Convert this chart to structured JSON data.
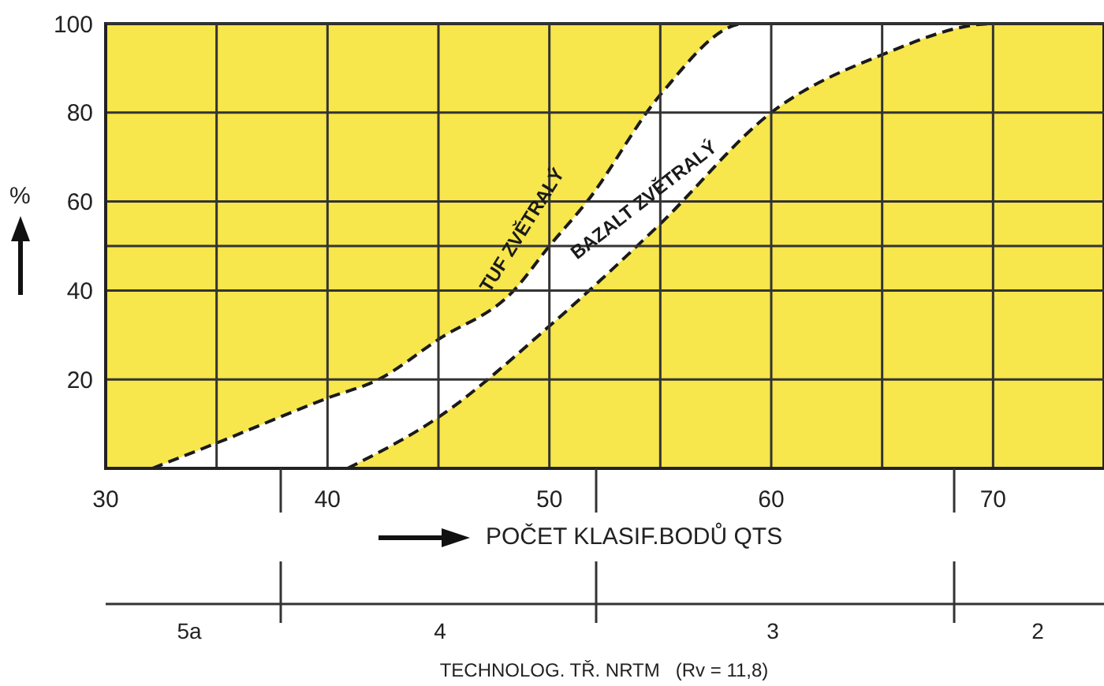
{
  "chart_data": {
    "type": "area",
    "xlabel": "POČET KLASIF.BODŮ QTS",
    "ylabel": "%",
    "annotations": [
      "5a",
      "4",
      "3",
      "2",
      "TECHNOLOG. TŘ. NRTM   (Rv = 11,8)"
    ],
    "xlim": [
      30,
      75
    ],
    "ylim": [
      0,
      100
    ],
    "xticks": [
      30,
      {
        "value": 35,
        "label": null
      },
      40,
      {
        "value": 45,
        "label": null
      },
      50,
      {
        "value": 55,
        "label": null
      },
      60,
      {
        "value": 65,
        "label": null
      },
      70
    ],
    "yticks": [
      20,
      40,
      {
        "value": 50,
        "label": null
      },
      60,
      80,
      100
    ],
    "grid": true,
    "legend": false,
    "line_style": "dashed",
    "marker": "none",
    "series": [
      {
        "name": "TUF ZVĚTRALÝ",
        "color": "#1a1a1a",
        "x": [
          32.1,
          35,
          40,
          42.3,
          45,
          48.4,
          50,
          51.7,
          55,
          58.8,
          75
        ],
        "values": [
          0,
          5.7,
          15.8,
          20,
          29,
          40,
          50,
          60,
          84,
          100,
          100
        ]
      },
      {
        "name": "BAZALT ZVĚTRALÝ",
        "color": "#1a1a1a",
        "x": [
          40.9,
          45,
          50,
          55,
          60,
          65,
          70,
          75
        ],
        "values": [
          0,
          11.5,
          32,
          55,
          80,
          93,
          100,
          100
        ]
      }
    ]
  }
}
